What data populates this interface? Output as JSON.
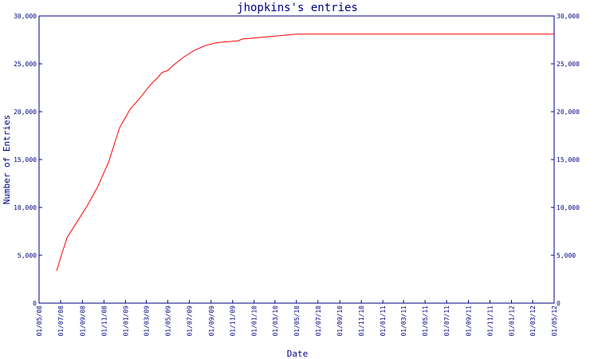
{
  "chart_data": {
    "type": "line",
    "title": "jhopkins's entries",
    "xlabel": "Date",
    "ylabel": "Number of Entries",
    "ylim": [
      0,
      30000
    ],
    "y_ticks": [
      0,
      5000,
      10000,
      15000,
      20000,
      25000,
      30000
    ],
    "y_tick_labels": [
      "0",
      "5,000",
      "10,000",
      "15,000",
      "20,000",
      "25,000",
      "30,000"
    ],
    "x_ticks": [
      "2008-05-01",
      "2008-07-01",
      "2008-09-01",
      "2008-11-01",
      "2009-01-01",
      "2009-03-01",
      "2009-05-01",
      "2009-07-01",
      "2009-09-01",
      "2009-11-01",
      "2010-01-01",
      "2010-03-01",
      "2010-05-01",
      "2010-07-01",
      "2010-09-01",
      "2010-11-01",
      "2011-01-01",
      "2011-03-01",
      "2011-05-01",
      "2011-07-01",
      "2011-09-01",
      "2011-11-01",
      "2012-01-01",
      "2012-03-01",
      "2012-05-01"
    ],
    "x_tick_labels": [
      "01/05/08",
      "01/07/08",
      "01/09/08",
      "01/11/08",
      "01/01/09",
      "01/03/09",
      "01/05/09",
      "01/07/09",
      "01/09/09",
      "01/11/09",
      "01/01/10",
      "01/03/10",
      "01/05/10",
      "01/07/10",
      "01/09/10",
      "01/11/10",
      "01/01/11",
      "01/03/11",
      "01/05/11",
      "01/07/11",
      "01/09/11",
      "01/11/11",
      "01/01/12",
      "01/03/12",
      "01/05/12"
    ],
    "xlim": [
      "2008-05-01",
      "2012-05-01"
    ],
    "grid": false,
    "series": [
      {
        "color": "#ff0000",
        "x": [
          "2008-06-20",
          "2008-07-05",
          "2008-07-20",
          "2008-08-15",
          "2008-09-15",
          "2008-10-15",
          "2008-11-15",
          "2008-12-15",
          "2009-01-15",
          "2009-02-15",
          "2009-03-15",
          "2009-04-01",
          "2009-04-15",
          "2009-05-01",
          "2009-05-15",
          "2009-06-15",
          "2009-07-15",
          "2009-08-15",
          "2009-09-15",
          "2009-10-15",
          "2009-11-15",
          "2009-12-01",
          "2010-01-01",
          "2010-02-01",
          "2010-03-01",
          "2010-04-01",
          "2010-05-01",
          "2010-07-01",
          "2010-10-01",
          "2011-01-01",
          "2011-06-01",
          "2012-01-01",
          "2012-05-01"
        ],
        "y": [
          3400,
          5200,
          6900,
          8400,
          10200,
          12200,
          14800,
          18300,
          20300,
          21600,
          22900,
          23500,
          24100,
          24300,
          24800,
          25700,
          26400,
          26900,
          27200,
          27300,
          27400,
          27600,
          27700,
          27800,
          27900,
          28000,
          28100,
          28100,
          28100,
          28100,
          28100,
          28100,
          28100
        ]
      }
    ]
  }
}
